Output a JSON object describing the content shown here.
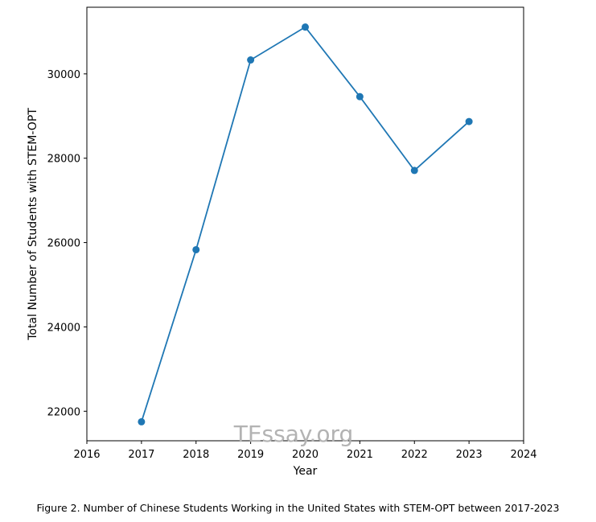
{
  "chart_data": {
    "type": "line",
    "title": "",
    "xlabel": "Year",
    "ylabel": "Total Number of Students with STEM-OPT",
    "x": [
      2017,
      2018,
      2019,
      2020,
      2021,
      2022,
      2023
    ],
    "series": [
      {
        "values": [
          21750,
          25830,
          30330,
          31110,
          29460,
          27710,
          28870
        ],
        "color": "#1f77b4",
        "marker": "circle"
      }
    ],
    "xlim": [
      2016,
      2024
    ],
    "ylim": [
      21300,
      31580
    ],
    "xticks": [
      "2016",
      "2017",
      "2018",
      "2019",
      "2020",
      "2021",
      "2022",
      "2023",
      "2024"
    ],
    "yticks": [
      "22000",
      "24000",
      "26000",
      "28000",
      "30000"
    ],
    "grid": false,
    "legend": "none"
  },
  "watermark": "TEssay.org",
  "caption": "Figure 2. Number of Chinese Students Working in the United States with STEM-OPT between 2017-2023"
}
